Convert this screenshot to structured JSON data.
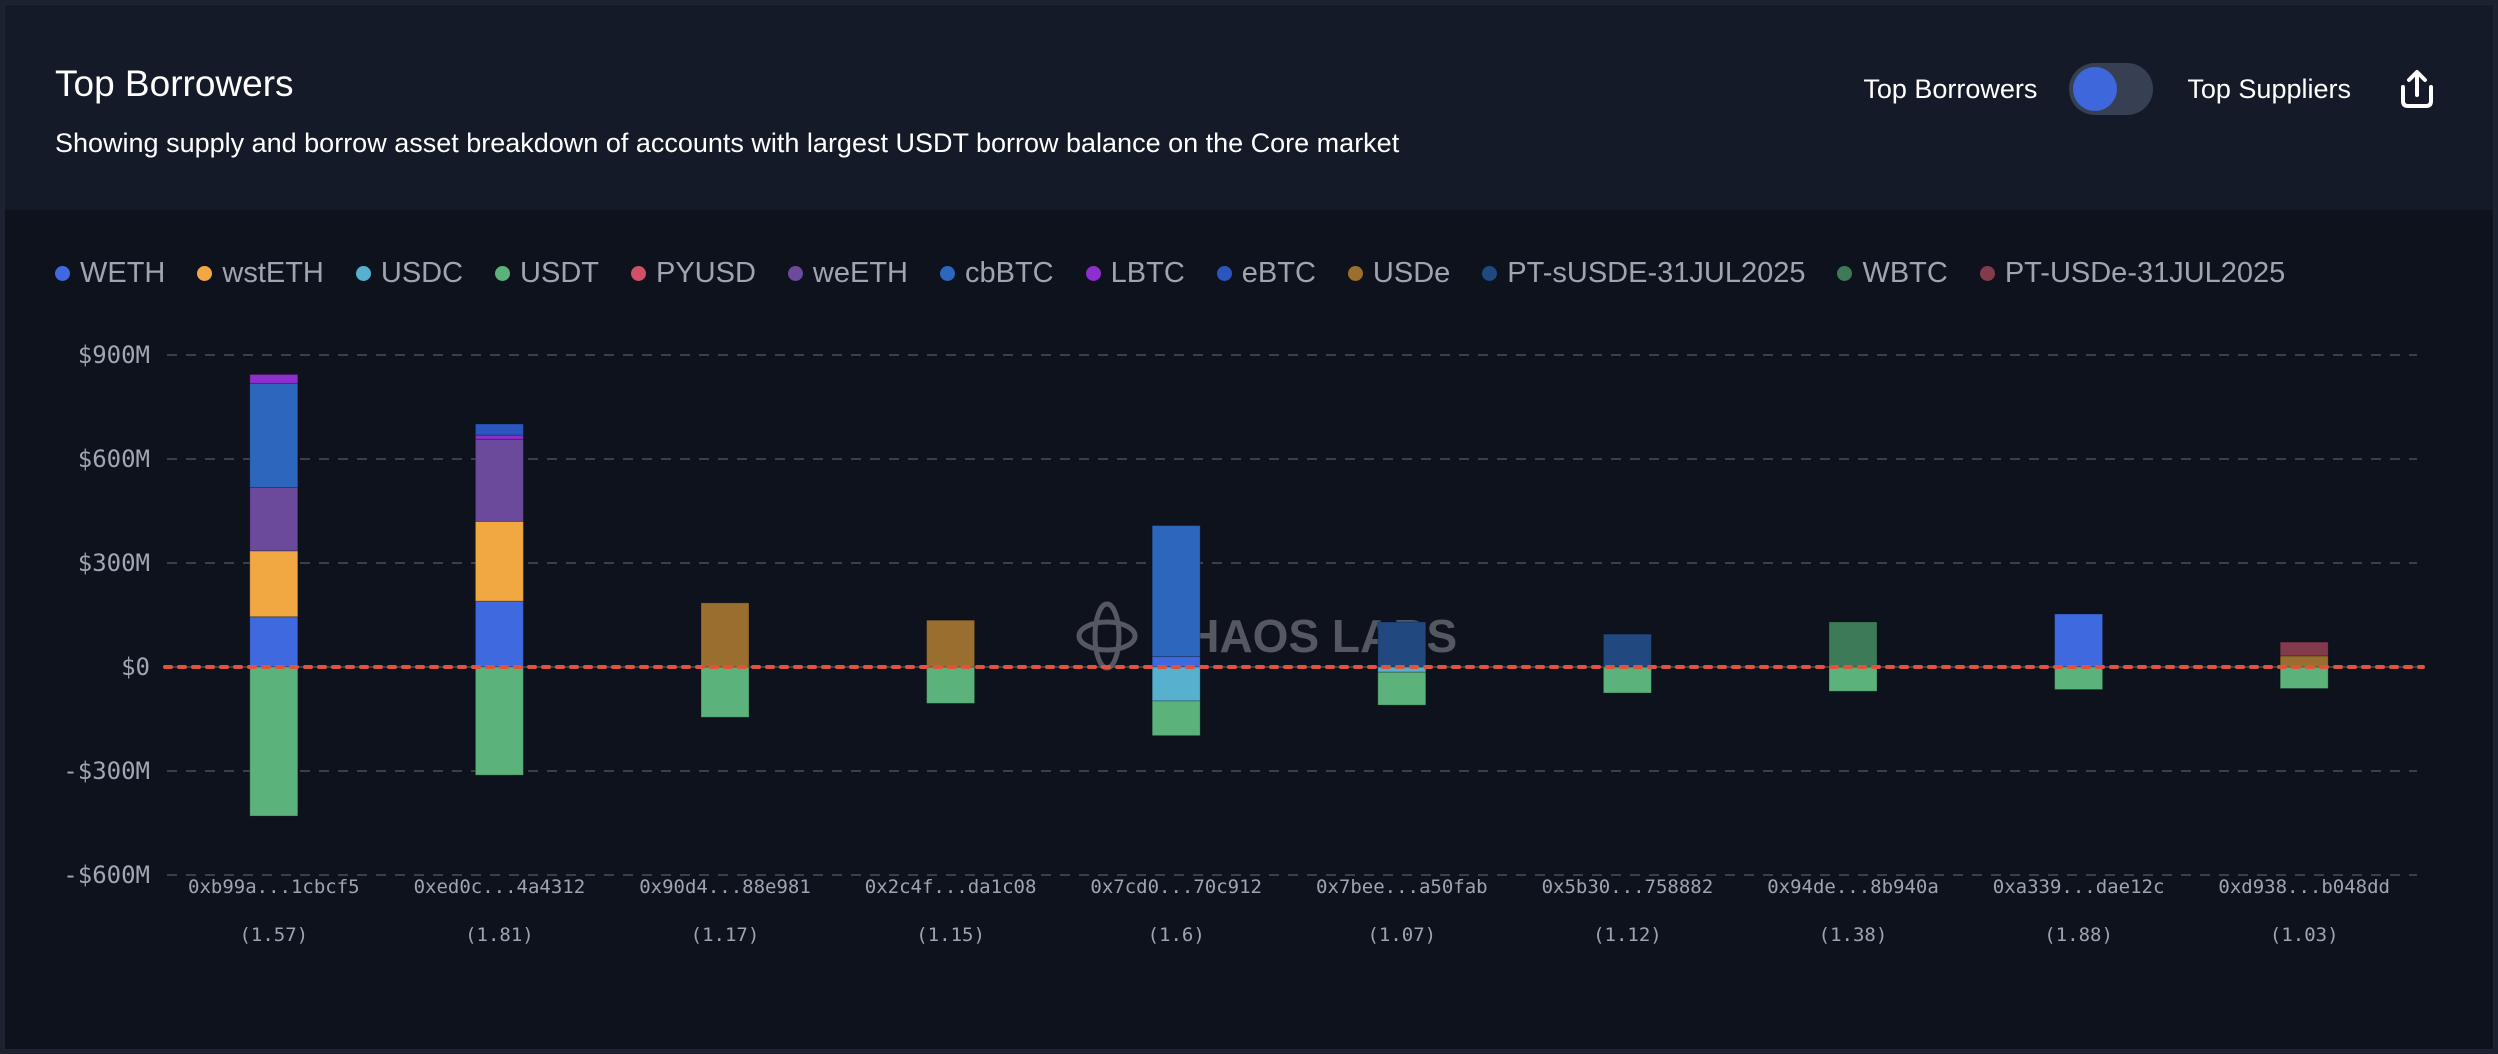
{
  "header": {
    "title": "Top Borrowers",
    "subtitle": "Showing supply and borrow asset breakdown of accounts with largest USDT borrow balance on the Core market",
    "toggle_left_label": "Top Borrowers",
    "toggle_right_label": "Top Suppliers",
    "toggle_state": "Top Borrowers",
    "share_icon": "share-upload-icon"
  },
  "watermark": "CHAOS LABS",
  "chart_data": {
    "type": "bar",
    "stacked": true,
    "title": "Top Borrowers",
    "xlabel": "",
    "ylabel": "",
    "ylim": [
      -600,
      900
    ],
    "y_unit": "$M",
    "yticks": [
      900,
      600,
      300,
      0,
      -300,
      -600
    ],
    "ytick_labels": [
      "$900M",
      "$600M",
      "$300M",
      "$0",
      "-$300M",
      "-$600M"
    ],
    "grid": true,
    "legend_position": "top-left",
    "zero_line_color": "#e0533f",
    "categories": [
      "0xb99a...1cbcf5",
      "0xed0c...4a4312",
      "0x90d4...88e981",
      "0x2c4f...da1c08",
      "0x7cd0...70c912",
      "0x7bee...a50fab",
      "0x5b30...758882",
      "0x94de...8b940a",
      "0xa339...dae12c",
      "0xd938...b048dd"
    ],
    "health_factors": [
      "(1.57)",
      "(1.81)",
      "(1.17)",
      "(1.15)",
      "(1.6)",
      "(1.07)",
      "(1.12)",
      "(1.38)",
      "(1.88)",
      "(1.03)"
    ],
    "series": [
      {
        "name": "WETH",
        "color": "#3f69de",
        "values": [
          145,
          190,
          0,
          0,
          30,
          0,
          0,
          0,
          153,
          0
        ]
      },
      {
        "name": "wstETH",
        "color": "#f2a842",
        "values": [
          190,
          230,
          0,
          0,
          0,
          0,
          0,
          0,
          0,
          0
        ]
      },
      {
        "name": "USDC",
        "color": "#56b0ce",
        "values": [
          0,
          0,
          0,
          0,
          -98,
          -15,
          0,
          0,
          0,
          0
        ]
      },
      {
        "name": "USDT",
        "color": "#5bb27b",
        "values": [
          -430,
          -312,
          -145,
          -105,
          -100,
          -95,
          -75,
          -70,
          -65,
          -62
        ]
      },
      {
        "name": "PYUSD",
        "color": "#d24f68",
        "values": [
          0,
          0,
          0,
          0,
          0,
          0,
          0,
          0,
          0,
          0
        ]
      },
      {
        "name": "weETH",
        "color": "#6c4a9b",
        "values": [
          183,
          237,
          0,
          0,
          0,
          0,
          0,
          0,
          0,
          0
        ]
      },
      {
        "name": "cbBTC",
        "color": "#2d66bd",
        "values": [
          300,
          0,
          0,
          0,
          378,
          0,
          0,
          0,
          0,
          0
        ]
      },
      {
        "name": "LBTC",
        "color": "#8c2fcc",
        "values": [
          26,
          12,
          0,
          0,
          0,
          0,
          0,
          0,
          0,
          0
        ]
      },
      {
        "name": "eBTC",
        "color": "#2b56c0",
        "values": [
          0,
          32,
          0,
          0,
          0,
          0,
          0,
          0,
          0,
          0
        ]
      },
      {
        "name": "USDe",
        "color": "#9a6e2e",
        "values": [
          0,
          0,
          185,
          135,
          0,
          0,
          0,
          0,
          0,
          32
        ]
      },
      {
        "name": "PT-sUSDE-31JUL2025",
        "color": "#21487f",
        "values": [
          0,
          0,
          0,
          0,
          0,
          130,
          95,
          0,
          0,
          0
        ]
      },
      {
        "name": "WBTC",
        "color": "#3d7a58",
        "values": [
          0,
          0,
          0,
          0,
          0,
          0,
          0,
          130,
          0,
          0
        ]
      },
      {
        "name": "PT-USDe-31JUL2025",
        "color": "#823a4c",
        "values": [
          0,
          0,
          0,
          0,
          0,
          0,
          0,
          0,
          0,
          40
        ]
      }
    ]
  }
}
